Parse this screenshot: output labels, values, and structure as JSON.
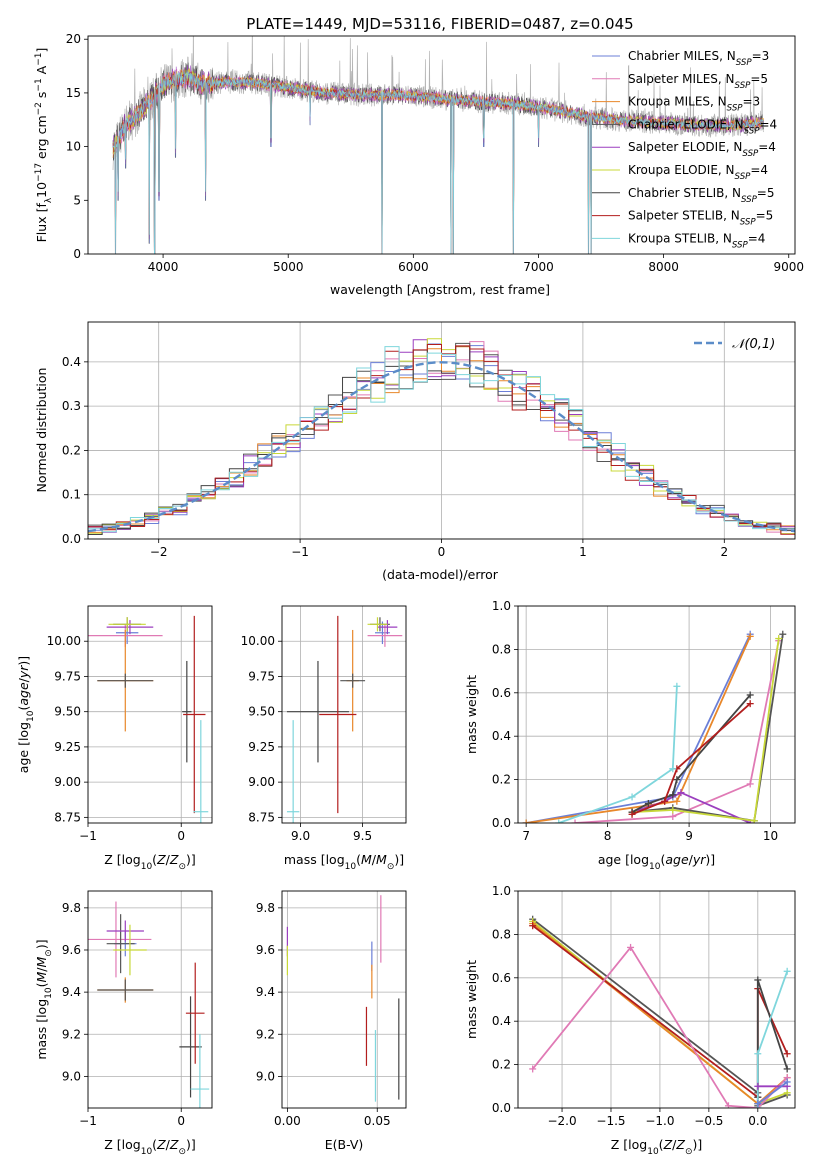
{
  "title": "PLATE=1449, MJD=53116, FIBERID=0487, z=0.045",
  "series": [
    {
      "label": "Chabrier MILES, N",
      "sub": "SSP",
      "eq": "=3",
      "color": "#6b7fd7"
    },
    {
      "label": "Salpeter MILES, N",
      "sub": "SSP",
      "eq": "=5",
      "color": "#e07ab5"
    },
    {
      "label": "Kroupa MILES, N",
      "sub": "SSP",
      "eq": "=3",
      "color": "#e8872a"
    },
    {
      "label": "Chabrier ELODIE, N",
      "sub": "SSP",
      "eq": "=4",
      "color": "#555555"
    },
    {
      "label": "Salpeter ELODIE, N",
      "sub": "SSP",
      "eq": "=4",
      "color": "#9b3fbf"
    },
    {
      "label": "Kroupa ELODIE, N",
      "sub": "SSP",
      "eq": "=4",
      "color": "#c8d838"
    },
    {
      "label": "Chabrier STELIB, N",
      "sub": "SSP",
      "eq": "=5",
      "color": "#444444"
    },
    {
      "label": "Salpeter STELIB, N",
      "sub": "SSP",
      "eq": "=5",
      "color": "#b21e1e"
    },
    {
      "label": "Kroupa STELIB, N",
      "sub": "SSP",
      "eq": "=4",
      "color": "#7fd6dc"
    }
  ],
  "chart_data": [
    {
      "id": "spectrum",
      "type": "line",
      "xlabel": "wavelength [Angstrom, rest frame]",
      "ylabel": "Flux [f",
      "ylabel_parts": [
        "Flux [f",
        "λ",
        "10",
        "−17",
        " erg cm",
        "−2",
        " s",
        "−1",
        " A",
        "−1",
        "]"
      ],
      "xlim": [
        3400,
        9050
      ],
      "ylim": [
        0,
        20.3
      ],
      "xticks": [
        4000,
        5000,
        6000,
        7000,
        8000,
        9000
      ],
      "yticks": [
        0,
        5,
        10,
        15,
        20
      ],
      "continuum": {
        "x": [
          3600,
          3700,
          3800,
          3900,
          4000,
          4100,
          4200,
          4300,
          4500,
          4700,
          5000,
          5300,
          5600,
          5900,
          6200,
          6500,
          6800,
          7100,
          7400,
          7700,
          8000,
          8300,
          8600,
          8800
        ],
        "y": [
          9.8,
          12.0,
          13.0,
          14.3,
          15.8,
          16.2,
          16.5,
          15.8,
          16.0,
          16.0,
          15.5,
          15.0,
          14.8,
          14.8,
          14.5,
          14.2,
          14.0,
          13.5,
          12.8,
          12.4,
          12.2,
          12.0,
          12.0,
          12.3
        ]
      },
      "dips": [
        [
          3620,
          0
        ],
        [
          3640,
          5
        ],
        [
          3700,
          8
        ],
        [
          3890,
          1
        ],
        [
          3934,
          0
        ],
        [
          3968,
          5
        ],
        [
          4100,
          9
        ],
        [
          4340,
          5
        ],
        [
          4861,
          10
        ],
        [
          5175,
          12
        ],
        [
          5750,
          0
        ],
        [
          6300,
          0
        ],
        [
          6320,
          0
        ],
        [
          6563,
          10
        ],
        [
          6800,
          0
        ],
        [
          7000,
          10
        ],
        [
          7400,
          0
        ],
        [
          7420,
          0
        ]
      ]
    },
    {
      "id": "residuals",
      "type": "histogram",
      "xlabel": "(data-model)/error",
      "ylabel": "Normed distribution",
      "xlim": [
        -2.5,
        2.5
      ],
      "ylim": [
        0,
        0.49
      ],
      "xticks": [
        -2,
        -1,
        0,
        1,
        2
      ],
      "yticks": [
        0.0,
        0.1,
        0.2,
        0.3,
        0.4
      ],
      "legend": "𝒩(0,1)",
      "gauss_color": "#5b8cc8"
    },
    {
      "id": "age-vs-Z",
      "type": "errorbar",
      "xlabel": "Z [log",
      "xlim": [
        -1,
        0.33
      ],
      "ylim": [
        8.71,
        10.25
      ],
      "xticks": [
        -1,
        0
      ],
      "yticks": [
        8.75,
        9.0,
        9.25,
        9.5,
        9.75,
        10.0
      ],
      "ylabel": "age  [log",
      "points": [
        {
          "s": 0,
          "x": -0.58,
          "y": 10.06,
          "xe": 0.12,
          "ye": 0.08
        },
        {
          "s": 1,
          "x": -0.6,
          "y": 10.04,
          "xe": 0.4,
          "ye": 0.08
        },
        {
          "s": 2,
          "x": -0.6,
          "y": 9.72,
          "xe": 0.3,
          "ye": 0.36
        },
        {
          "s": 3,
          "x": -0.58,
          "y": 10.12,
          "xe": 0.15,
          "ye": 0.05
        },
        {
          "s": 4,
          "x": -0.55,
          "y": 10.1,
          "xe": 0.25,
          "ye": 0.05
        },
        {
          "s": 5,
          "x": -0.58,
          "y": 10.12,
          "xe": 0.2,
          "ye": 0.05
        },
        {
          "s": 6,
          "x": 0.06,
          "y": 9.5,
          "xe": 0.05,
          "ye": 0.36
        },
        {
          "s": 7,
          "x": 0.14,
          "y": 9.48,
          "xe": 0.12,
          "ye": 0.7
        },
        {
          "s": 8,
          "x": 0.21,
          "y": 8.79,
          "xe": 0.08,
          "ye": 0.65
        },
        {
          "s": 3,
          "x": -0.6,
          "y": 9.72,
          "xe": 0.3,
          "ye": 0.05
        }
      ]
    },
    {
      "id": "age-vs-mass",
      "type": "errorbar",
      "xlabel": "mass [log",
      "xlim": [
        8.85,
        9.85
      ],
      "ylim": [
        8.71,
        10.25
      ],
      "xticks": [
        9.0,
        9.5
      ],
      "yticks": [
        8.75,
        9.0,
        9.25,
        9.5,
        9.75,
        10.0
      ],
      "points": [
        {
          "s": 0,
          "x": 9.66,
          "y": 10.06,
          "xe": 0.06,
          "ye": 0.08
        },
        {
          "s": 1,
          "x": 9.68,
          "y": 10.04,
          "xe": 0.14,
          "ye": 0.08
        },
        {
          "s": 2,
          "x": 9.42,
          "y": 9.72,
          "xe": 0.05,
          "ye": 0.36
        },
        {
          "s": 3,
          "x": 9.64,
          "y": 10.12,
          "xe": 0.08,
          "ye": 0.05
        },
        {
          "s": 4,
          "x": 9.7,
          "y": 10.1,
          "xe": 0.08,
          "ye": 0.05
        },
        {
          "s": 5,
          "x": 9.62,
          "y": 10.12,
          "xe": 0.08,
          "ye": 0.05
        },
        {
          "s": 6,
          "x": 9.14,
          "y": 9.5,
          "xe": 0.25,
          "ye": 0.36
        },
        {
          "s": 7,
          "x": 9.3,
          "y": 9.48,
          "xe": 0.15,
          "ye": 0.7
        },
        {
          "s": 8,
          "x": 8.94,
          "y": 8.79,
          "xe": 0.05,
          "ye": 0.65
        },
        {
          "s": 3,
          "x": 9.42,
          "y": 9.72,
          "xe": 0.1,
          "ye": 0.05
        }
      ]
    },
    {
      "id": "mass-weight-vs-age",
      "type": "line",
      "xlabel": "age  [log",
      "ylabel": "mass weight",
      "xlim": [
        6.9,
        10.3
      ],
      "ylim": [
        0,
        1.0
      ],
      "xticks": [
        7,
        8,
        9,
        10
      ],
      "yticks": [
        0.0,
        0.2,
        0.4,
        0.6,
        0.8,
        1.0
      ],
      "lines": [
        {
          "s": 0,
          "x": [
            7.0,
            8.8,
            9.75
          ],
          "y": [
            0.0,
            0.12,
            0.87
          ]
        },
        {
          "s": 1,
          "x": 7.6,
          "xy": [
            [
              7.6,
              0.0
            ],
            [
              8.8,
              0.03
            ],
            [
              9.75,
              0.18
            ],
            [
              10.1,
              0.84
            ]
          ]
        },
        {
          "s": 2,
          "xy": [
            [
              7.0,
              0.0
            ],
            [
              8.85,
              0.1
            ],
            [
              9.75,
              0.86
            ]
          ]
        },
        {
          "s": 3,
          "xy": [
            [
              8.3,
              0.05
            ],
            [
              8.8,
              0.07
            ],
            [
              9.8,
              0.01
            ],
            [
              10.15,
              0.87
            ]
          ]
        },
        {
          "s": 4,
          "xy": [
            [
              8.3,
              0.05
            ],
            [
              8.7,
              0.1
            ],
            [
              8.9,
              0.14
            ],
            [
              9.75,
              0.0
            ]
          ]
        },
        {
          "s": 5,
          "xy": [
            [
              8.3,
              0.05
            ],
            [
              8.8,
              0.06
            ],
            [
              9.8,
              0.01
            ],
            [
              10.1,
              0.85
            ]
          ]
        },
        {
          "s": 6,
          "xy": [
            [
              8.3,
              0.05
            ],
            [
              8.5,
              0.09
            ],
            [
              8.8,
              0.13
            ],
            [
              8.85,
              0.2
            ],
            [
              9.75,
              0.59
            ]
          ]
        },
        {
          "s": 7,
          "xy": [
            [
              8.3,
              0.04
            ],
            [
              8.7,
              0.1
            ],
            [
              8.85,
              0.25
            ],
            [
              9.75,
              0.55
            ]
          ]
        },
        {
          "s": 8,
          "xy": [
            [
              7.4,
              0.0
            ],
            [
              8.3,
              0.12
            ],
            [
              8.8,
              0.25
            ],
            [
              8.85,
              0.63
            ]
          ]
        }
      ]
    },
    {
      "id": "mass-vs-Z",
      "type": "errorbar",
      "xlabel": "Z [log",
      "ylabel": "mass [log",
      "xlim": [
        -1,
        0.33
      ],
      "ylim": [
        8.85,
        9.88
      ],
      "xticks": [
        -1,
        0
      ],
      "yticks": [
        9.0,
        9.2,
        9.4,
        9.6,
        9.8
      ],
      "points": [
        {
          "s": 0,
          "x": -0.6,
          "y": 9.63,
          "xe": 0.12,
          "ye": 0.06
        },
        {
          "s": 1,
          "x": -0.7,
          "y": 9.65,
          "xe": 0.38,
          "ye": 0.18
        },
        {
          "s": 2,
          "x": -0.6,
          "y": 9.41,
          "xe": 0.3,
          "ye": 0.06
        },
        {
          "s": 3,
          "x": -0.65,
          "y": 9.63,
          "xe": 0.15,
          "ye": 0.14
        },
        {
          "s": 4,
          "x": -0.6,
          "y": 9.69,
          "xe": 0.2,
          "ye": 0.05
        },
        {
          "s": 5,
          "x": -0.55,
          "y": 9.6,
          "xe": 0.18,
          "ye": 0.12
        },
        {
          "s": 6,
          "x": 0.1,
          "y": 9.14,
          "xe": 0.12,
          "ye": 0.24
        },
        {
          "s": 7,
          "x": 0.15,
          "y": 9.3,
          "xe": 0.1,
          "ye": 0.24
        },
        {
          "s": 8,
          "x": 0.2,
          "y": 8.94,
          "xe": 0.1,
          "ye": 0.26
        },
        {
          "s": 3,
          "x": -0.6,
          "y": 9.41,
          "xe": 0.3,
          "ye": 0.05
        }
      ]
    },
    {
      "id": "mass-vs-EBV",
      "type": "errorbar",
      "xlabel": "E(B-V)",
      "xlim": [
        -0.003,
        0.066
      ],
      "ylim": [
        8.85,
        9.88
      ],
      "xticks": [
        0.0,
        0.05
      ],
      "yticks": [
        9.0,
        9.2,
        9.4,
        9.6,
        9.8
      ],
      "points": [
        {
          "s": 4,
          "x": 0.0,
          "y": 9.64,
          "xe": 0,
          "ye": 0.07
        },
        {
          "s": 5,
          "x": 0.0,
          "y": 9.55,
          "xe": 0,
          "ye": 0.07
        },
        {
          "s": 1,
          "x": 0.052,
          "y": 9.7,
          "xe": 0,
          "ye": 0.16
        },
        {
          "s": 0,
          "x": 0.047,
          "y": 9.57,
          "xe": 0,
          "ye": 0.07
        },
        {
          "s": 2,
          "x": 0.047,
          "y": 9.45,
          "xe": 0,
          "ye": 0.08
        },
        {
          "s": 7,
          "x": 0.044,
          "y": 9.19,
          "xe": 0,
          "ye": 0.14
        },
        {
          "s": 8,
          "x": 0.049,
          "y": 9.05,
          "xe": 0,
          "ye": 0.17
        },
        {
          "s": 6,
          "x": 0.062,
          "y": 9.13,
          "xe": 0,
          "ye": 0.24
        }
      ]
    },
    {
      "id": "mass-weight-vs-Z",
      "type": "line",
      "xlabel": "Z [log",
      "ylabel": "mass weight",
      "xlim": [
        -2.45,
        0.38
      ],
      "ylim": [
        0,
        1.0
      ],
      "xticks": [
        -2.0,
        -1.5,
        -1.0,
        -0.5,
        0.0
      ],
      "yticks": [
        0.0,
        0.2,
        0.4,
        0.6,
        0.8,
        1.0
      ],
      "lines": [
        {
          "s": 3,
          "xy": [
            [
              -2.3,
              0.87
            ],
            [
              0.0,
              0.07
            ],
            [
              0.0,
              0.01
            ],
            [
              0.3,
              0.06
            ]
          ]
        },
        {
          "s": 5,
          "xy": [
            [
              -2.3,
              0.86
            ],
            [
              0.0,
              0.02
            ],
            [
              0.3,
              0.07
            ]
          ]
        },
        {
          "s": 2,
          "xy": [
            [
              -2.3,
              0.85
            ],
            [
              0.0,
              0.02
            ],
            [
              0.3,
              0.14
            ]
          ]
        },
        {
          "s": 7,
          "xy": [
            [
              -2.3,
              0.84
            ],
            [
              0.0,
              0.05
            ],
            [
              0.0,
              0.55
            ],
            [
              0.3,
              0.25
            ]
          ]
        },
        {
          "s": 1,
          "xy": [
            [
              -2.3,
              0.18
            ],
            [
              -1.3,
              0.74
            ],
            [
              -0.3,
              0.01
            ],
            [
              0.0,
              0.0
            ],
            [
              0.3,
              0.14
            ]
          ]
        },
        {
          "s": 6,
          "xy": [
            [
              0.0,
              0.05
            ],
            [
              0.0,
              0.59
            ],
            [
              0.3,
              0.18
            ]
          ]
        },
        {
          "s": 8,
          "xy": [
            [
              0.0,
              0.0
            ],
            [
              0.0,
              0.25
            ],
            [
              0.3,
              0.63
            ]
          ]
        },
        {
          "s": 4,
          "xy": [
            [
              0.0,
              0.1
            ],
            [
              0.3,
              0.1
            ]
          ]
        },
        {
          "s": 0,
          "xy": [
            [
              0.0,
              0.02
            ],
            [
              0.3,
              0.12
            ]
          ]
        }
      ]
    }
  ]
}
